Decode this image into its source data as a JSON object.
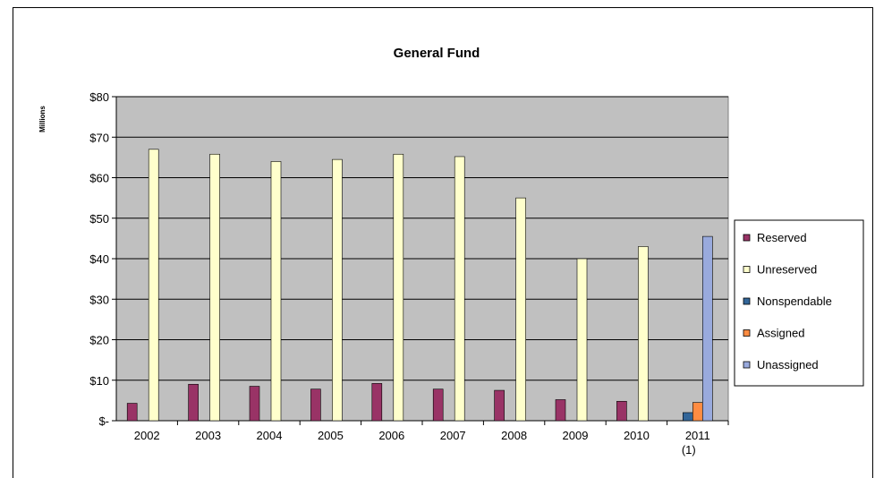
{
  "chart_data": {
    "type": "bar",
    "title": "General Fund",
    "ylabel": "Millions",
    "xlabel": "",
    "categories": [
      "2002",
      "2003",
      "2004",
      "2005",
      "2006",
      "2007",
      "2008",
      "2009",
      "2010",
      "2011"
    ],
    "category_sublabels": [
      "",
      "",
      "",
      "",
      "",
      "",
      "",
      "",
      "",
      "(1)"
    ],
    "ylim": [
      0,
      80
    ],
    "yticks": [
      0,
      10,
      20,
      30,
      40,
      50,
      60,
      70,
      80
    ],
    "ytick_labels": [
      "$-",
      "$10",
      "$20",
      "$30",
      "$40",
      "$50",
      "$60",
      "$70",
      "$80"
    ],
    "grid": true,
    "legend_position": "right",
    "series": [
      {
        "name": "Reserved",
        "color": "#993366",
        "values": [
          4.3,
          9,
          8.5,
          7.8,
          9.2,
          7.8,
          7.5,
          5.2,
          4.8,
          null
        ]
      },
      {
        "name": "Unreserved",
        "color": "#ffffcc",
        "values": [
          67,
          65.8,
          64,
          64.5,
          65.8,
          65.2,
          55,
          40,
          43,
          null
        ]
      },
      {
        "name": "Nonspendable",
        "color": "#336699",
        "values": [
          null,
          null,
          null,
          null,
          null,
          null,
          null,
          null,
          null,
          2
        ]
      },
      {
        "name": "Assigned",
        "color": "#ff8c42",
        "values": [
          null,
          null,
          null,
          null,
          null,
          null,
          null,
          null,
          null,
          4.5
        ]
      },
      {
        "name": "Unassigned",
        "color": "#99aadd",
        "values": [
          null,
          null,
          null,
          null,
          null,
          null,
          null,
          null,
          null,
          45.5
        ]
      }
    ],
    "plot_background": "#c0c0c0"
  }
}
